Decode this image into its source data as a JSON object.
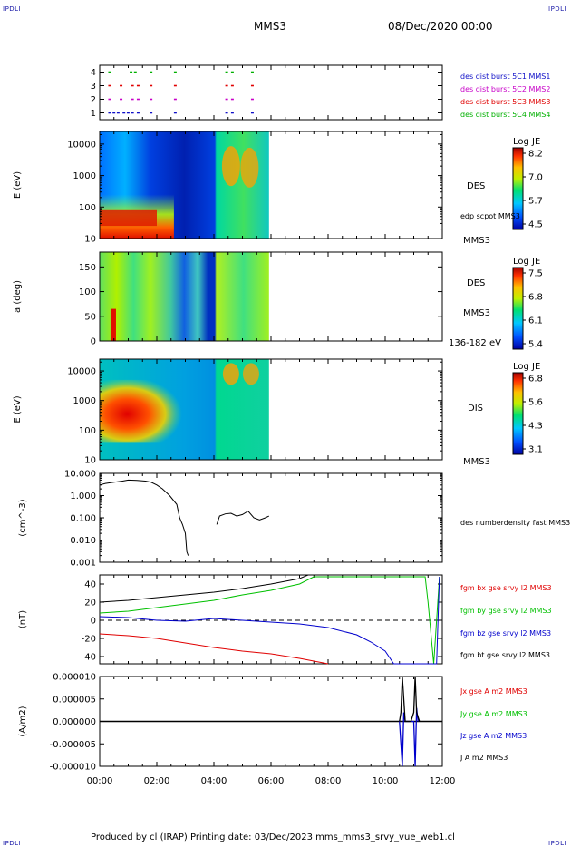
{
  "corner_label": "IPDLI",
  "header": {
    "spacecraft": "MMS3",
    "date": "08/Dec/2020 00:00"
  },
  "footer": {
    "text": "Produced by cl (IRAP)   Printing date: 03/Dec/2023   mms_mms3_srvy_vue_web1.cl"
  },
  "colors": {
    "mms1": "#1010c8",
    "mms2": "#c800c8",
    "mms3": "#e00000",
    "mms4": "#00b000",
    "bx": "#e00000",
    "by": "#00c000",
    "bz": "#0000cc",
    "bt": "#000000"
  },
  "chart_data": [
    {
      "id": "burst",
      "type": "scatter",
      "x_axis": [
        "00:00",
        "02:00",
        "04:00",
        "06:00",
        "08:00",
        "10:00",
        "12:00"
      ],
      "xlim_hours": [
        0,
        12
      ],
      "yticks": [
        "1",
        "2",
        "3",
        "4"
      ],
      "ylim": [
        0.5,
        4.5
      ],
      "series": [
        {
          "name": "des dist burst 5C1 MMS1",
          "level": 1,
          "x": [
            0.3,
            0.45,
            0.6,
            0.8,
            0.95,
            1.1,
            1.3,
            1.75,
            2.6,
            4.4,
            4.6,
            5.3
          ]
        },
        {
          "name": "des dist burst 5C2 MMS2",
          "level": 2,
          "x": [
            0.3,
            0.7,
            1.1,
            1.3,
            1.75,
            2.6,
            4.4,
            4.6,
            5.3
          ]
        },
        {
          "name": "des dist burst 5C3 MMS3",
          "level": 3,
          "x": [
            0.3,
            0.7,
            1.1,
            1.3,
            1.75,
            2.6,
            4.4,
            4.6,
            5.3
          ]
        },
        {
          "name": "des dist burst 5C4 MMS4",
          "level": 4,
          "x": [
            0.3,
            1.05,
            1.2,
            1.75,
            2.6,
            4.4,
            4.6,
            5.3
          ]
        }
      ]
    },
    {
      "id": "des_energy",
      "type": "heatmap",
      "ylabel": "E (eV)",
      "yticks": [
        "10",
        "100",
        "1000",
        "10000"
      ],
      "ylim_log10": [
        1,
        4.4
      ],
      "data_end_hours": 5.93,
      "side_labels": [
        "DES",
        "edp scpot MMS3",
        "MMS3"
      ],
      "colorbar": {
        "title": "Log JE",
        "ticks": [
          "8.2",
          "7.0",
          "5.7",
          "4.5"
        ],
        "range": [
          4.5,
          8.2
        ]
      }
    },
    {
      "id": "des_pitch",
      "type": "heatmap",
      "ylabel": "a (deg)",
      "yticks": [
        "0",
        "50",
        "100",
        "150"
      ],
      "ylim": [
        0,
        180
      ],
      "data_end_hours": 5.93,
      "side_labels": [
        "DES",
        "MMS3",
        "136-182 eV"
      ],
      "colorbar": {
        "title": "Log JE",
        "ticks": [
          "7.5",
          "6.8",
          "6.1",
          "5.4"
        ],
        "range": [
          5.4,
          7.5
        ]
      }
    },
    {
      "id": "dis_energy",
      "type": "heatmap",
      "ylabel": "E (eV)",
      "yticks": [
        "10",
        "100",
        "1000",
        "10000"
      ],
      "ylim_log10": [
        1,
        4.4
      ],
      "data_end_hours": 5.93,
      "side_labels": [
        "DIS",
        "MMS3"
      ],
      "colorbar": {
        "title": "Log JE",
        "ticks": [
          "6.8",
          "5.6",
          "4.3",
          "3.1"
        ],
        "range": [
          3.1,
          6.8
        ]
      }
    },
    {
      "id": "density",
      "type": "line",
      "ylabel": "(cm^-3)",
      "yticks": [
        "0.001",
        "0.010",
        "0.100",
        "1.000",
        "10.000"
      ],
      "ylim_log10": [
        -3,
        1
      ],
      "series": [
        {
          "name": "des numberdensity fast MMS3",
          "x": [
            0.0,
            0.2,
            0.5,
            0.8,
            1.0,
            1.3,
            1.6,
            1.8,
            2.0,
            2.2,
            2.45,
            2.7,
            2.75,
            2.8,
            2.9,
            3.0,
            3.05,
            3.1
          ],
          "y": [
            3.0,
            3.5,
            4.0,
            4.5,
            5.0,
            4.8,
            4.5,
            4.0,
            3.0,
            2.0,
            1.0,
            0.4,
            0.2,
            0.1,
            0.05,
            0.02,
            0.003,
            0.002
          ],
          "x2": [
            4.1,
            4.2,
            4.4,
            4.6,
            4.8,
            5.0,
            5.2,
            5.4,
            5.6,
            5.8,
            5.93
          ],
          "y2": [
            0.05,
            0.12,
            0.15,
            0.16,
            0.12,
            0.14,
            0.2,
            0.1,
            0.08,
            0.1,
            0.12
          ]
        }
      ]
    },
    {
      "id": "bfield",
      "type": "line",
      "ylabel": "(nT)",
      "yticks": [
        "-40",
        "-20",
        "0",
        "20",
        "40"
      ],
      "ylim": [
        -48,
        50
      ],
      "series": [
        {
          "name": "fgm bx gse srvy l2 MMS3",
          "color_key": "bx",
          "x": [
            0.0,
            1.0,
            2.0,
            3.0,
            4.0,
            5.0,
            6.0,
            7.0,
            7.5,
            8.0
          ],
          "y": [
            -15,
            -17,
            -20,
            -25,
            -30,
            -34,
            -37,
            -42,
            -45,
            -48
          ]
        },
        {
          "name": "fgm by gse srvy l2 MMS3",
          "color_key": "by",
          "x": [
            0.0,
            1.0,
            2.0,
            3.0,
            4.0,
            5.0,
            6.0,
            7.0,
            7.5,
            11.4,
            11.5,
            11.7,
            11.9
          ],
          "y": [
            8,
            10,
            14,
            18,
            22,
            28,
            33,
            40,
            48,
            48,
            20,
            -48,
            48
          ]
        },
        {
          "name": "fgm bz gse srvy l2 MMS3",
          "color_key": "bz",
          "x": [
            0.0,
            1.0,
            2.0,
            3.0,
            4.0,
            5.0,
            6.0,
            7.0,
            8.0,
            9.0,
            9.5,
            10.0,
            10.3,
            11.8,
            11.9
          ],
          "y": [
            4,
            3,
            0,
            -1,
            2,
            0,
            -2,
            -4,
            -8,
            -16,
            -24,
            -34,
            -48,
            -48,
            48
          ]
        },
        {
          "name": "fgm bt gse srvy l2 MMS3",
          "color_key": "bt",
          "x": [
            0.0,
            1.0,
            2.0,
            3.0,
            4.0,
            5.0,
            6.0,
            7.0,
            7.3
          ],
          "y": [
            20,
            22,
            25,
            28,
            31,
            35,
            40,
            46,
            50
          ]
        }
      ]
    },
    {
      "id": "current",
      "type": "line",
      "ylabel": "(A/m2)",
      "yticks": [
        "-0.000010",
        "-0.000005",
        "0.000000",
        "0.000005",
        "0.000010"
      ],
      "ylim": [
        -1e-05,
        1e-05
      ],
      "series": [
        {
          "name": "Jx gse A m2 MMS3",
          "color_key": "bx"
        },
        {
          "name": "Jy gse A m2 MMS3",
          "color_key": "by"
        },
        {
          "name": "Jz gse A m2 MMS3",
          "color_key": "bz",
          "x": [
            10.5,
            10.55,
            10.6,
            10.65,
            10.7,
            11.0,
            11.05,
            11.1,
            11.15
          ],
          "y": [
            0,
            -5e-06,
            -1e-05,
            2e-06,
            0,
            0,
            -1e-05,
            3e-06,
            0
          ]
        },
        {
          "name": "J A m2 MMS3",
          "color_key": "bt",
          "x": [
            10.5,
            10.55,
            10.6,
            10.65,
            10.7,
            10.9,
            11.0,
            11.05,
            11.1,
            11.2
          ],
          "y": [
            0,
            2e-06,
            1.05e-05,
            5e-06,
            0,
            0,
            2e-06,
            1.05e-05,
            2e-06,
            0
          ]
        }
      ]
    }
  ]
}
